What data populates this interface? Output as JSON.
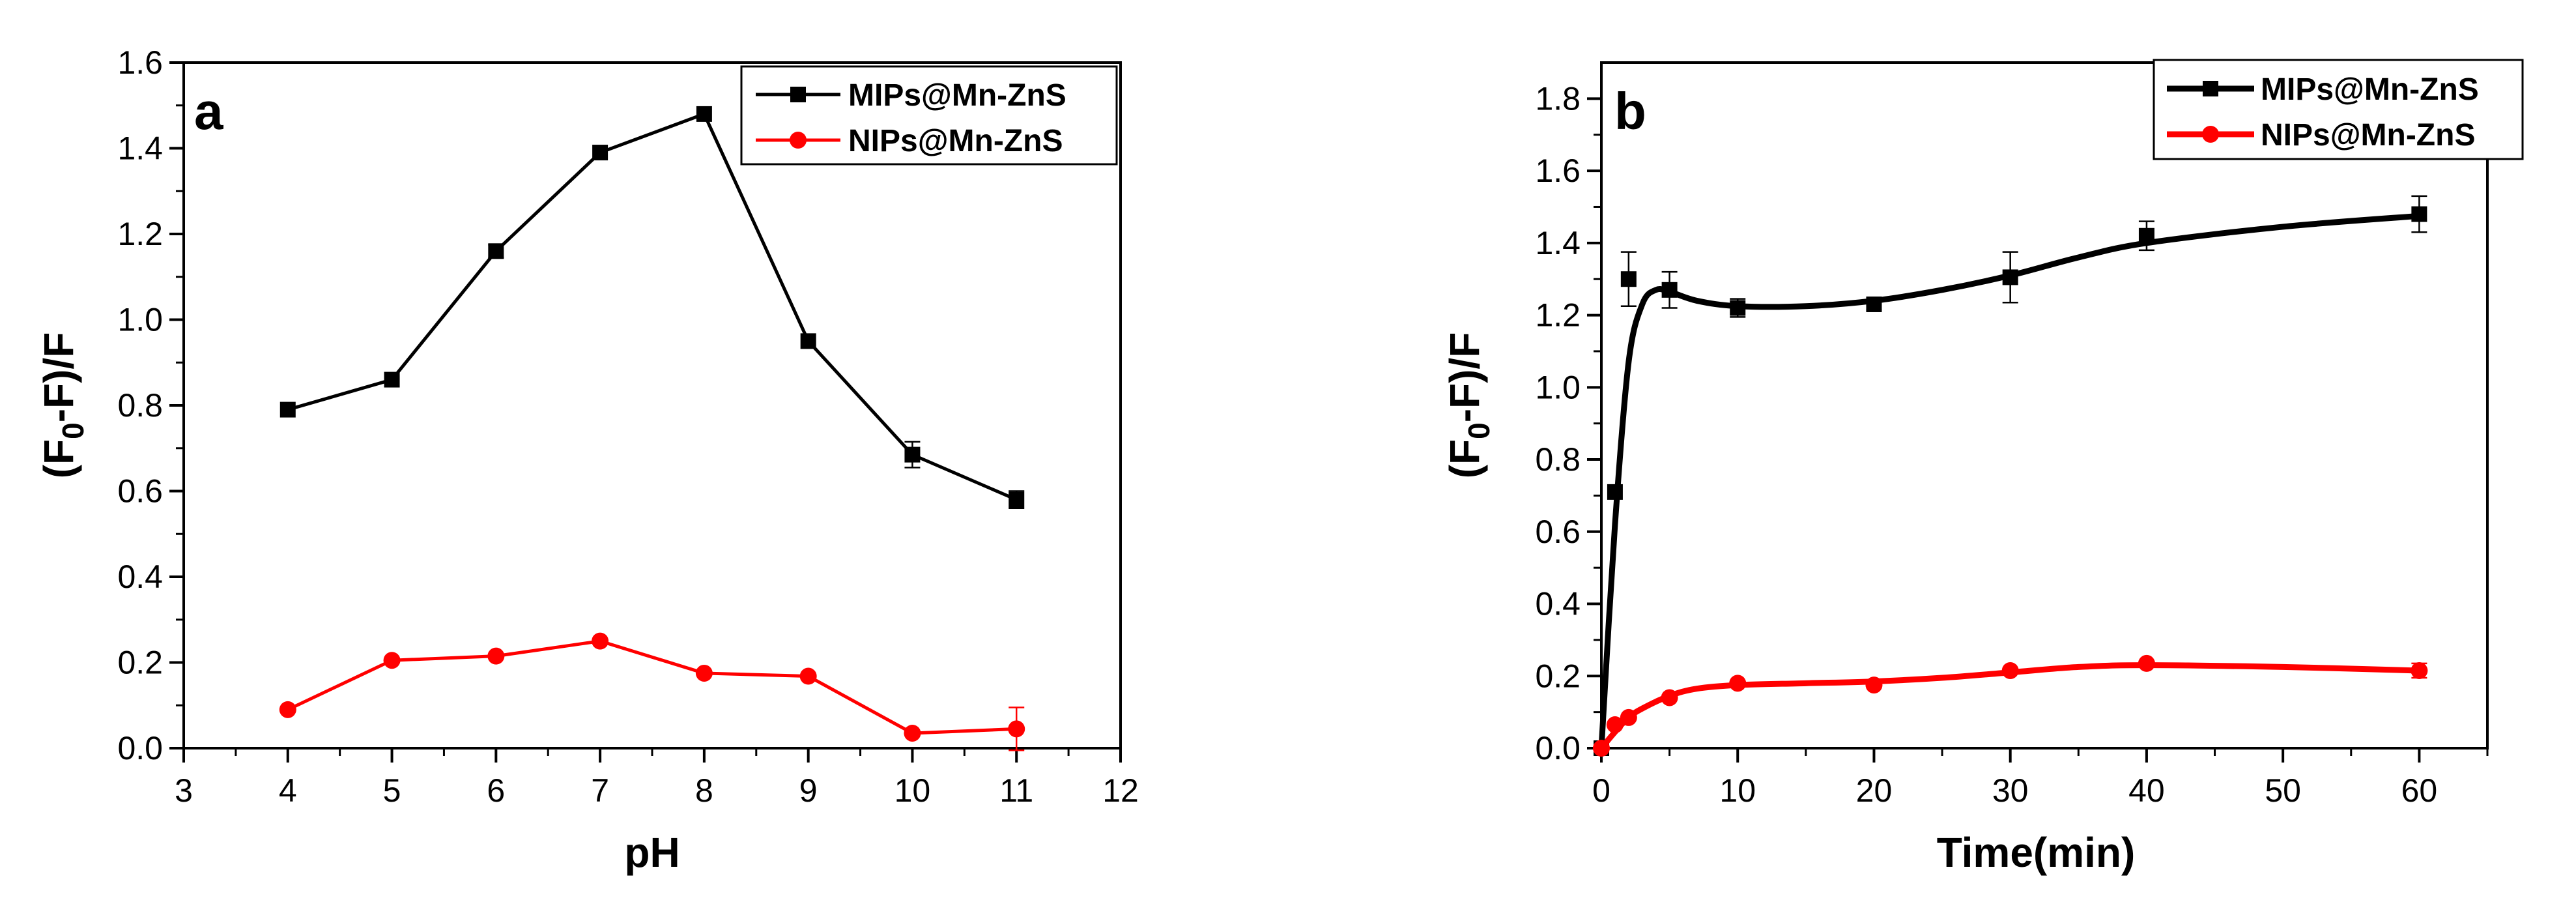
{
  "chart_data": [
    {
      "type": "line",
      "panel_label": "a",
      "xlabel": "pH",
      "ylabel": "(F0-F)/F",
      "ylabel_parts": {
        "open": "(F",
        "sub": "0",
        "close": "-F)/F"
      },
      "xlim": [
        3,
        12
      ],
      "ylim": [
        0,
        1.6
      ],
      "xticks": [
        3,
        4,
        5,
        6,
        7,
        8,
        9,
        10,
        11,
        12
      ],
      "yticks": [
        0.0,
        0.2,
        0.4,
        0.6,
        0.8,
        1.0,
        1.2,
        1.4,
        1.6
      ],
      "ytick_labels": [
        "0.0",
        "0.2",
        "0.4",
        "0.6",
        "0.8",
        "1.0",
        "1.2",
        "1.4",
        "1.6"
      ],
      "legend_position": "top-right",
      "series": [
        {
          "name": "MIPs@Mn-ZnS",
          "color": "#000000",
          "marker": "square",
          "x": [
            4,
            5,
            6,
            7,
            8,
            9,
            10,
            11
          ],
          "y": [
            0.79,
            0.86,
            1.16,
            1.39,
            1.48,
            0.95,
            0.685,
            0.58
          ],
          "err": [
            0.01,
            0.01,
            0.015,
            0.01,
            0.01,
            0.01,
            0.03,
            0.02
          ]
        },
        {
          "name": "NIPs@Mn-ZnS",
          "color": "#ff0000",
          "marker": "circle",
          "x": [
            4,
            5,
            6,
            7,
            8,
            9,
            10,
            11
          ],
          "y": [
            0.09,
            0.205,
            0.215,
            0.25,
            0.175,
            0.168,
            0.035,
            0.045
          ],
          "err": [
            0.005,
            0.005,
            0.005,
            0.005,
            0.005,
            0.005,
            0.005,
            0.05
          ]
        }
      ]
    },
    {
      "type": "line",
      "panel_label": "b",
      "xlabel": "Time(min)",
      "ylabel": "(F0-F)/F",
      "ylabel_parts": {
        "open": "(F",
        "sub": "0",
        "close": "-F)/F"
      },
      "xlim": [
        0,
        65
      ],
      "ylim": [
        0,
        1.9
      ],
      "xticks": [
        0,
        10,
        20,
        30,
        40,
        50,
        60
      ],
      "yticks": [
        0.0,
        0.2,
        0.4,
        0.6,
        0.8,
        1.0,
        1.2,
        1.4,
        1.6,
        1.8
      ],
      "ytick_labels": [
        "0.0",
        "0.2",
        "0.4",
        "0.6",
        "0.8",
        "1.0",
        "1.2",
        "1.4",
        "1.6",
        "1.8"
      ],
      "legend_position": "top-right",
      "series": [
        {
          "name": "MIPs@Mn-ZnS",
          "color": "#000000",
          "marker": "square",
          "x": [
            0,
            1,
            2,
            5,
            10,
            20,
            30,
            40,
            60
          ],
          "y": [
            0.0,
            0.71,
            1.3,
            1.27,
            1.22,
            1.23,
            1.305,
            1.42,
            1.48
          ],
          "err": [
            0.0,
            0.01,
            0.075,
            0.05,
            0.025,
            0.015,
            0.07,
            0.04,
            0.05
          ],
          "fit": {
            "x": [
              0,
              1,
              2,
              3,
              4,
              5,
              7,
              10,
              15,
              20,
              25,
              30,
              35,
              40,
              50,
              60
            ],
            "y": [
              0.0,
              0.62,
              1.07,
              1.23,
              1.27,
              1.265,
              1.24,
              1.225,
              1.225,
              1.24,
              1.27,
              1.31,
              1.36,
              1.4,
              1.445,
              1.475
            ]
          }
        },
        {
          "name": "NIPs@Mn-ZnS",
          "color": "#ff0000",
          "marker": "circle",
          "x": [
            0,
            1,
            2,
            5,
            10,
            20,
            30,
            40,
            60
          ],
          "y": [
            0.0,
            0.065,
            0.085,
            0.14,
            0.18,
            0.175,
            0.215,
            0.235,
            0.215
          ],
          "err": [
            0.0,
            0.005,
            0.005,
            0.005,
            0.01,
            0.01,
            0.01,
            0.01,
            0.02
          ],
          "fit": {
            "x": [
              0,
              1,
              2,
              3,
              5,
              7,
              10,
              15,
              20,
              25,
              30,
              35,
              40,
              50,
              60
            ],
            "y": [
              0.0,
              0.045,
              0.085,
              0.11,
              0.145,
              0.165,
              0.175,
              0.18,
              0.185,
              0.195,
              0.21,
              0.225,
              0.23,
              0.225,
              0.215
            ]
          }
        }
      ]
    }
  ]
}
